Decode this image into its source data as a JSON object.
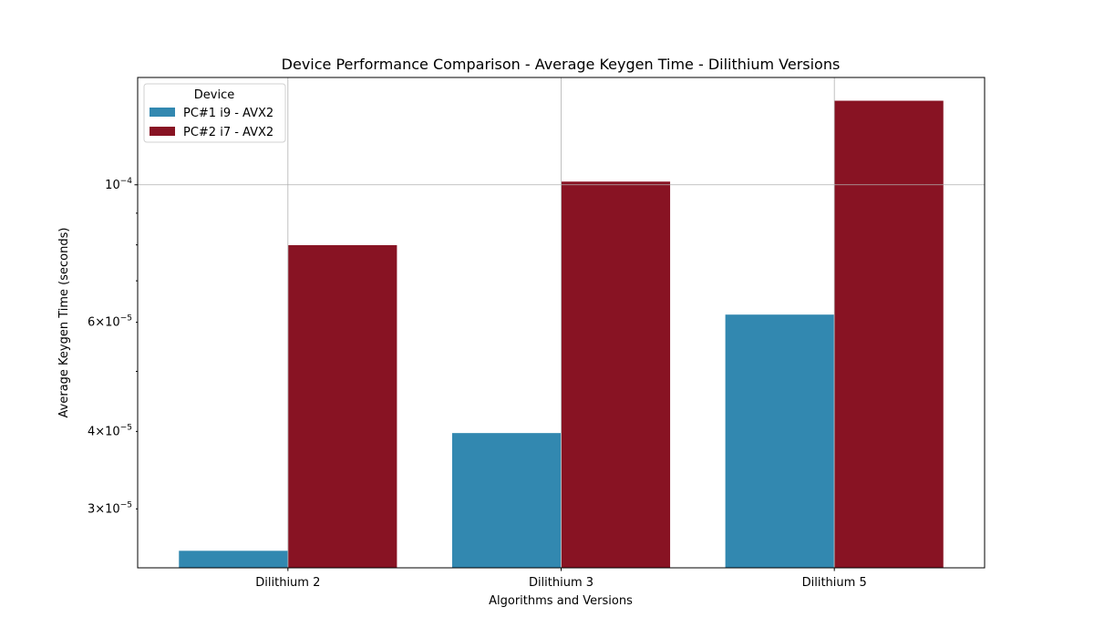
{
  "chart_data": {
    "type": "bar",
    "title": "Device Performance Comparison - Average Keygen Time - Dilithium Versions",
    "xlabel": "Algorithms and Versions",
    "ylabel": "Average Keygen Time (seconds)",
    "categories": [
      "Dilithium 2",
      "Dilithium 3",
      "Dilithium 5"
    ],
    "yscale": "log",
    "ylim": [
      2.41e-05,
      0.000149
    ],
    "major_ticks": [
      {
        "value": 0.0001,
        "mantissa": "",
        "exponent": "−4"
      }
    ],
    "minor_labeled_ticks": [
      {
        "value": 3e-05,
        "mantissa": "3",
        "exponent": "−5"
      },
      {
        "value": 4e-05,
        "mantissa": "4",
        "exponent": "−5"
      },
      {
        "value": 6e-05,
        "mantissa": "6",
        "exponent": "−5"
      }
    ],
    "minor_unlabeled_ticks": [
      5e-05,
      7e-05,
      8e-05,
      9e-05
    ],
    "grid": true,
    "legend": {
      "title": "Device",
      "placement": "top-left"
    },
    "series": [
      {
        "name": "PC#1 i9 - AVX2",
        "color": "#3288b0",
        "values": [
          2.57e-05,
          3.98e-05,
          6.18e-05
        ]
      },
      {
        "name": "PC#2 i7 - AVX2",
        "color": "#881323",
        "values": [
          8e-05,
          0.0001013,
          0.0001368
        ]
      }
    ]
  }
}
